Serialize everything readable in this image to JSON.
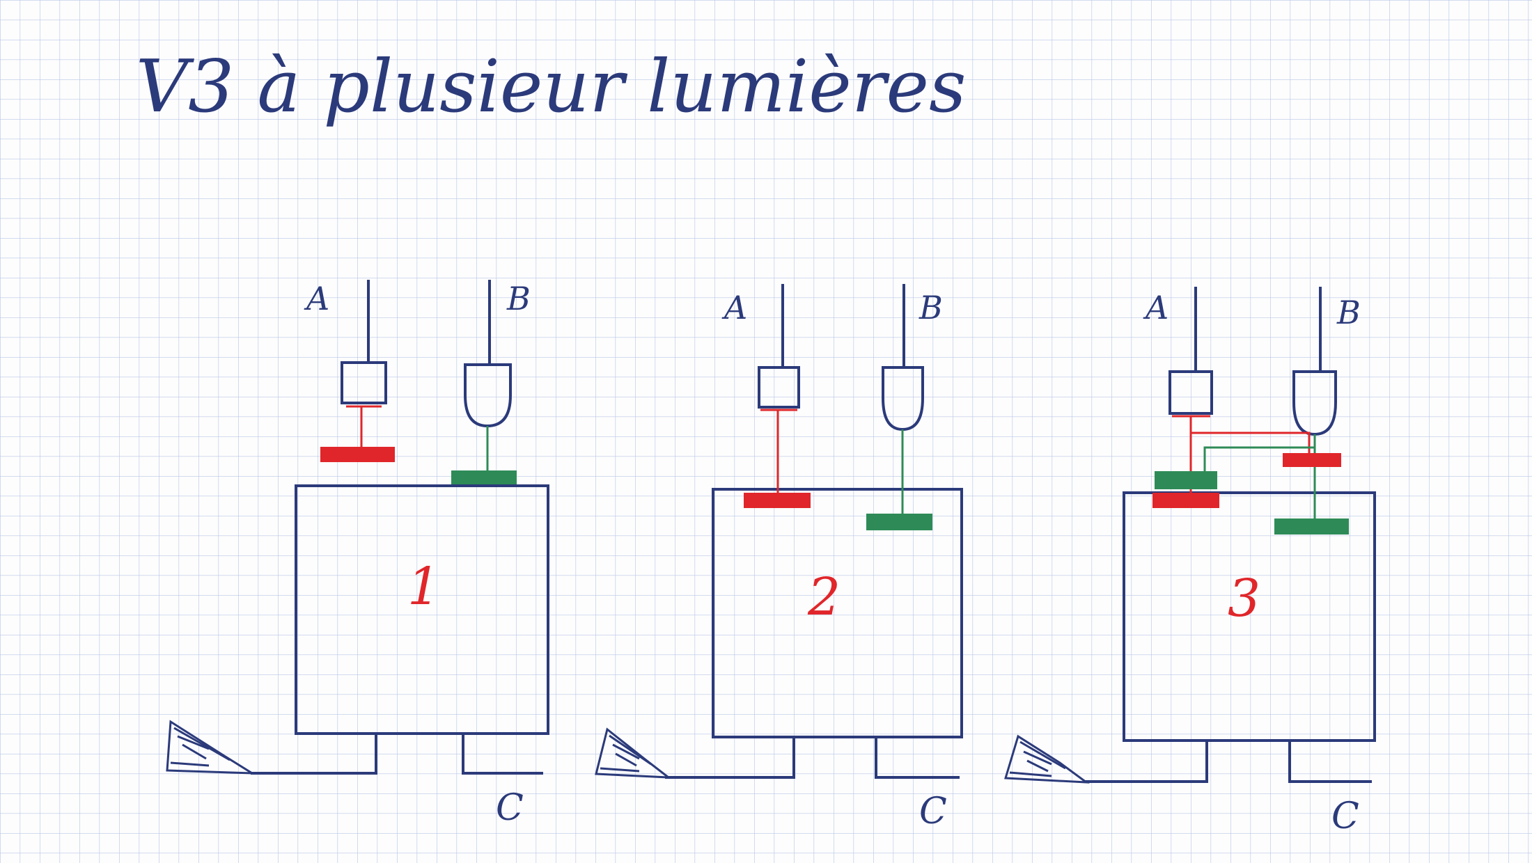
{
  "title": "V3 à plusieur lumières",
  "colors": {
    "paper": "#fdfdfd",
    "grid": "#b9c6e6",
    "ink": "#2b3a7a",
    "red": "#e0262a",
    "green": "#2e8b57"
  },
  "circuits": [
    {
      "label": "1",
      "input_a": "A",
      "input_b": "B",
      "output": "C"
    },
    {
      "label": "2",
      "input_a": "A",
      "input_b": "B",
      "output": "C"
    },
    {
      "label": "3",
      "input_a": "A",
      "input_b": "B",
      "output": "C"
    }
  ],
  "icons": {
    "light_source": "light-source-icon"
  }
}
